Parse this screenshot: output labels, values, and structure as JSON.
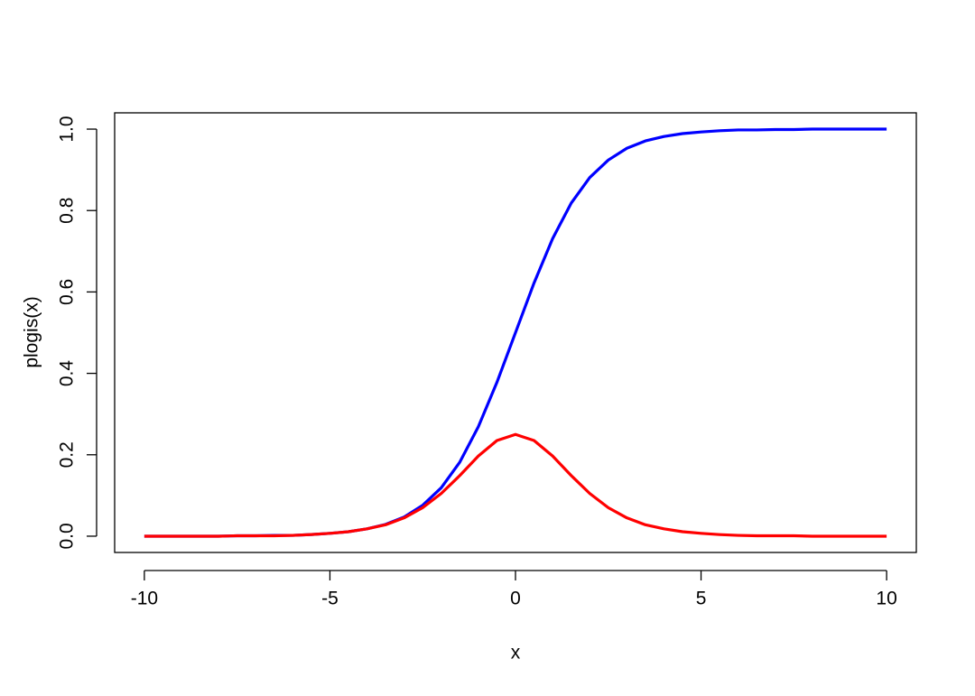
{
  "chart_data": {
    "type": "line",
    "x_label": "x",
    "y_label": "plogis(x)",
    "x": [
      -10,
      -9.5,
      -9,
      -8.5,
      -8,
      -7.5,
      -7,
      -6.5,
      -6,
      -5.5,
      -5,
      -4.5,
      -4,
      -3.5,
      -3,
      -2.5,
      -2,
      -1.5,
      -1,
      -0.5,
      0,
      0.5,
      1,
      1.5,
      2,
      2.5,
      3,
      3.5,
      4,
      4.5,
      5,
      5.5,
      6,
      6.5,
      7,
      7.5,
      8,
      8.5,
      9,
      9.5,
      10
    ],
    "series": [
      {
        "color": "#0000ff",
        "values": [
          0,
          0,
          0,
          0,
          0,
          0.001,
          0.001,
          0.002,
          0.002,
          0.004,
          0.007,
          0.011,
          0.018,
          0.029,
          0.047,
          0.076,
          0.119,
          0.182,
          0.269,
          0.378,
          0.5,
          0.622,
          0.731,
          0.818,
          0.881,
          0.924,
          0.953,
          0.971,
          0.982,
          0.989,
          0.993,
          0.996,
          0.998,
          0.998,
          0.999,
          0.999,
          1,
          1,
          1,
          1,
          1
        ]
      },
      {
        "color": "#ff0000",
        "values": [
          0,
          0,
          0,
          0,
          0,
          0.001,
          0.001,
          0.001,
          0.002,
          0.004,
          0.007,
          0.011,
          0.018,
          0.028,
          0.045,
          0.07,
          0.105,
          0.149,
          0.197,
          0.235,
          0.25,
          0.235,
          0.197,
          0.149,
          0.105,
          0.07,
          0.045,
          0.028,
          0.018,
          0.011,
          0.007,
          0.004,
          0.002,
          0.001,
          0.001,
          0.001,
          0,
          0,
          0,
          0,
          0
        ]
      }
    ],
    "xlim": [
      -10.8,
      10.8
    ],
    "xticks": [
      -10,
      -5,
      0,
      5,
      10
    ],
    "ylim": [
      -0.04,
      1.04
    ],
    "yticks": [
      {
        "value": 0,
        "label": "0.0"
      },
      0.2,
      0.4,
      0.6,
      0.8,
      {
        "value": 1,
        "label": "1.0"
      }
    ]
  }
}
